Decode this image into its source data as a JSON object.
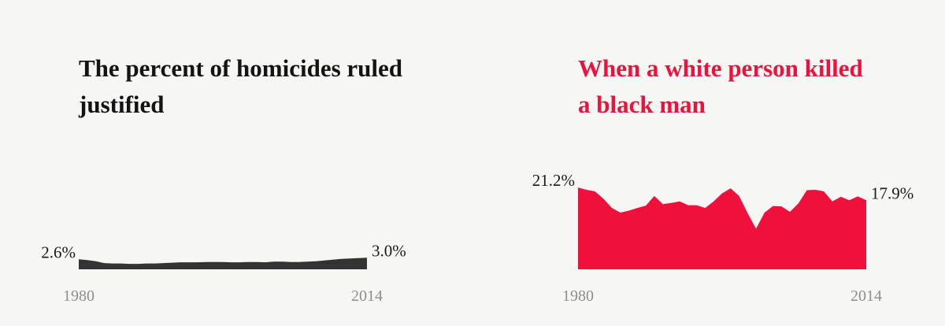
{
  "chart_data": [
    {
      "type": "area",
      "title": "The percent of homicides ruled justified",
      "color": "#333333",
      "x_tick_labels": [
        "1980",
        "2014"
      ],
      "x": [
        1980,
        1981,
        1982,
        1983,
        1984,
        1985,
        1986,
        1987,
        1988,
        1989,
        1990,
        1991,
        1992,
        1993,
        1994,
        1995,
        1996,
        1997,
        1998,
        1999,
        2000,
        2001,
        2002,
        2003,
        2004,
        2005,
        2006,
        2007,
        2008,
        2009,
        2010,
        2011,
        2012,
        2013,
        2014
      ],
      "values": [
        2.6,
        2.4,
        2.1,
        1.6,
        1.5,
        1.5,
        1.4,
        1.4,
        1.5,
        1.5,
        1.6,
        1.7,
        1.8,
        1.8,
        1.8,
        1.9,
        1.9,
        1.9,
        1.8,
        1.8,
        1.9,
        1.9,
        1.8,
        2.0,
        2.0,
        1.9,
        1.9,
        2.0,
        2.1,
        2.3,
        2.5,
        2.7,
        2.8,
        2.9,
        3.0
      ],
      "start_label": "2.6%",
      "end_label": "3.0%"
    },
    {
      "type": "area",
      "title": "When a white person killed a black man",
      "color": "#f0103c",
      "x_tick_labels": [
        "1980",
        "2014"
      ],
      "x": [
        1980,
        1981,
        1982,
        1983,
        1984,
        1985,
        1986,
        1987,
        1988,
        1989,
        1990,
        1991,
        1992,
        1993,
        1994,
        1995,
        1996,
        1997,
        1998,
        1999,
        2000,
        2001,
        2002,
        2003,
        2004,
        2005,
        2006,
        2007,
        2008,
        2009,
        2010,
        2011,
        2012,
        2013,
        2014
      ],
      "values": [
        21.2,
        20.6,
        20.2,
        18.3,
        15.9,
        14.7,
        15.2,
        15.9,
        16.5,
        19.0,
        16.9,
        17.2,
        17.6,
        16.6,
        16.6,
        15.9,
        17.6,
        19.7,
        21.0,
        19.0,
        14.6,
        10.5,
        14.7,
        16.4,
        16.3,
        14.9,
        17.1,
        20.5,
        20.6,
        20.2,
        17.6,
        18.8,
        17.9,
        18.9,
        17.9
      ],
      "start_label": "21.2%",
      "end_label": "17.9%"
    }
  ]
}
